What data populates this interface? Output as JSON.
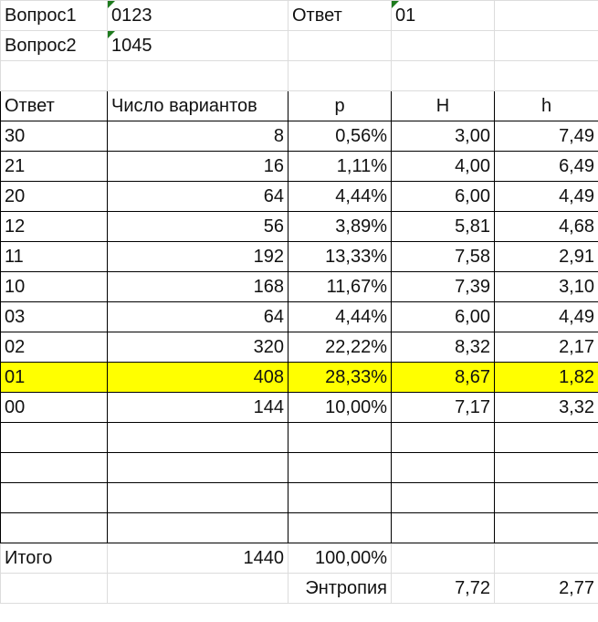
{
  "top": {
    "q1_label": "Вопрос1",
    "q1_value": "0123",
    "q2_label": "Вопрос2",
    "q2_value": "1045",
    "answer_label": "Ответ",
    "answer_value": "01"
  },
  "table": {
    "headers": [
      "Ответ",
      "Число вариантов",
      "p",
      "H",
      "h"
    ],
    "rows": [
      [
        "30",
        "8",
        "0,56%",
        "3,00",
        "7,49"
      ],
      [
        "21",
        "16",
        "1,11%",
        "4,00",
        "6,49"
      ],
      [
        "20",
        "64",
        "4,44%",
        "6,00",
        "4,49"
      ],
      [
        "12",
        "56",
        "3,89%",
        "5,81",
        "4,68"
      ],
      [
        "11",
        "192",
        "13,33%",
        "7,58",
        "2,91"
      ],
      [
        "10",
        "168",
        "11,67%",
        "7,39",
        "3,10"
      ],
      [
        "03",
        "64",
        "4,44%",
        "6,00",
        "4,49"
      ],
      [
        "02",
        "320",
        "22,22%",
        "8,32",
        "2,17"
      ],
      [
        "01",
        "408",
        "28,33%",
        "8,67",
        "1,82"
      ],
      [
        "00",
        "144",
        "10,00%",
        "7,17",
        "3,32"
      ]
    ],
    "highlight_row": "01",
    "highlight_color": "#ffff00"
  },
  "totals": {
    "label": "Итого",
    "count": "1440",
    "percent": "100,00%",
    "entropy_label": "Энтропия",
    "entropy_H": "7,72",
    "entropy_h": "2,77"
  }
}
